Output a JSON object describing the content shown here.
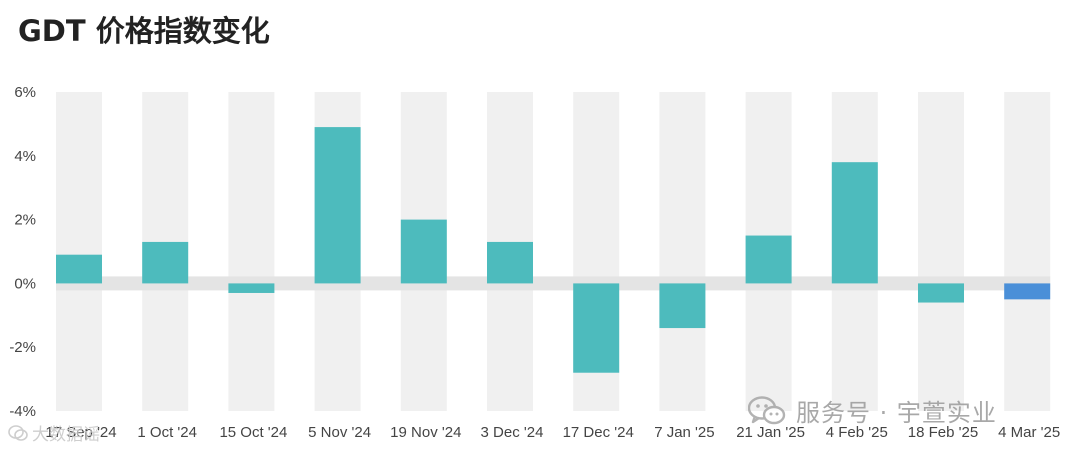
{
  "title": "GDT 价格指数变化",
  "chart_data": {
    "type": "bar",
    "categories": [
      "17 Sep '24",
      "1 Oct '24",
      "15 Oct '24",
      "5 Nov '24",
      "19 Nov '24",
      "3 Dec '24",
      "17 Dec '24",
      "7 Jan '25",
      "21 Jan '25",
      "4 Feb '25",
      "18 Feb '25",
      "4 Mar '25"
    ],
    "values": [
      0.9,
      1.3,
      -0.3,
      4.9,
      2.0,
      1.3,
      -2.8,
      -1.4,
      1.5,
      3.8,
      -0.6,
      -0.5
    ],
    "ylim": [
      -4,
      6
    ],
    "yticks": [
      "6%",
      "4%",
      "2%",
      "0%",
      "-2%",
      "-4%"
    ],
    "ytick_values": [
      6,
      4,
      2,
      0,
      -2,
      -4
    ],
    "grid": "alternating column bands",
    "colors": {
      "bar": "#4dbbbd",
      "highlight": "#4a8fd8",
      "band": "#f0f0f0",
      "zero_band": "#e4e4e4"
    },
    "highlight_index": 11
  },
  "watermark": {
    "text": "服务号 · 宇萱实业",
    "icon": "wechat-icon",
    "small_text": "大数据谣"
  }
}
